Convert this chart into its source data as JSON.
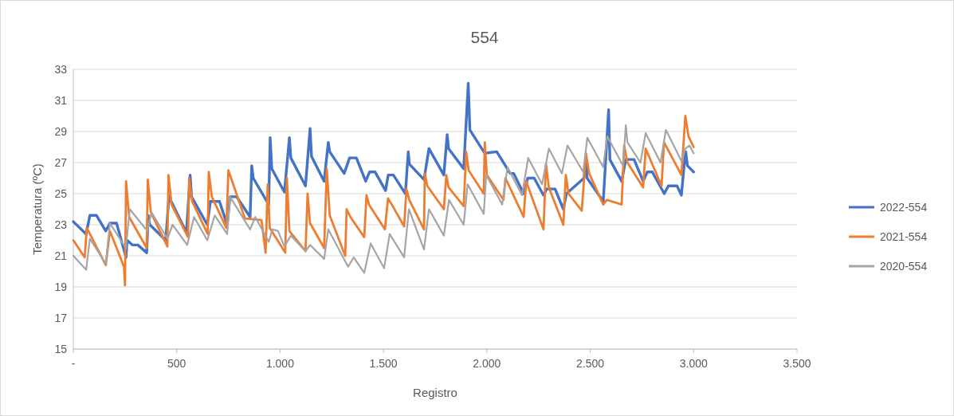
{
  "chart_data": {
    "type": "line",
    "title": "554",
    "xlabel": "Registro",
    "ylabel": "Temperatura (ºC)",
    "xlim": [
      0,
      3500
    ],
    "xticks": [
      {
        "value": 0,
        "label": "-"
      },
      500,
      {
        "value": 1000,
        "label": "1.000"
      },
      {
        "value": 1500,
        "label": "1.500"
      },
      {
        "value": 2000,
        "label": "2.000"
      },
      {
        "value": 2500,
        "label": "2.500"
      },
      {
        "value": 3000,
        "label": "3.000"
      },
      {
        "value": 3500,
        "label": "3.500"
      }
    ],
    "ylim": [
      15,
      33
    ],
    "yticks": [
      15,
      17,
      19,
      21,
      23,
      25,
      27,
      29,
      31,
      33
    ],
    "grid": "y",
    "legend": "right",
    "line_style": "solid",
    "marker": "none",
    "series": [
      {
        "name": "2022-554",
        "color": "#4472c4",
        "x": [
          0,
          62,
          80,
          112,
          157,
          177,
          209,
          255,
          260,
          285,
          312,
          355,
          362,
          370,
          447,
          465,
          470,
          547,
          565,
          572,
          648,
          663,
          707,
          744,
          758,
          790,
          855,
          863,
          870,
          945,
          952,
          960,
          1021,
          1045,
          1052,
          1123,
          1145,
          1152,
          1213,
          1233,
          1240,
          1310,
          1336,
          1369,
          1414,
          1433,
          1459,
          1510,
          1523,
          1548,
          1606,
          1620,
          1625,
          1696,
          1720,
          1792,
          1808,
          1815,
          1888,
          1910,
          1918,
          1990,
          2048,
          2113,
          2130,
          2178,
          2198,
          2229,
          2274,
          2290,
          2330,
          2370,
          2385,
          2470,
          2479,
          2485,
          2563,
          2589,
          2595,
          2652,
          2672,
          2712,
          2756,
          2776,
          2800,
          2858,
          2878,
          2920,
          2941,
          2954,
          2962,
          2970,
          3000
        ],
        "values": [
          23.2,
          22.4,
          23.6,
          23.6,
          22.6,
          23.1,
          23.1,
          20.9,
          22.0,
          21.7,
          21.7,
          21.2,
          23.6,
          23.0,
          22.0,
          25.3,
          24.6,
          22.5,
          26.2,
          24.8,
          23.0,
          24.5,
          24.5,
          23.0,
          24.8,
          24.8,
          23.5,
          26.8,
          26.0,
          24.3,
          28.6,
          26.6,
          25.1,
          28.6,
          27.3,
          25.5,
          29.2,
          27.4,
          25.8,
          28.3,
          27.7,
          26.3,
          27.3,
          27.3,
          25.8,
          26.4,
          26.4,
          25.2,
          26.2,
          26.2,
          25.0,
          27.7,
          26.9,
          25.9,
          27.9,
          26.2,
          28.8,
          27.9,
          26.6,
          32.1,
          29.1,
          27.6,
          27.7,
          26.3,
          26.3,
          25.0,
          26.0,
          26.0,
          24.9,
          25.3,
          25.3,
          24.0,
          25.0,
          26.0,
          27.3,
          26.0,
          24.5,
          30.4,
          27.2,
          25.8,
          27.2,
          27.2,
          25.8,
          26.4,
          26.4,
          25.0,
          25.5,
          25.5,
          24.9,
          26.8,
          27.7,
          26.8,
          26.4
        ]
      },
      {
        "name": "2021-554",
        "color": "#ed7d31",
        "x": [
          0,
          55,
          65,
          157,
          177,
          245,
          250,
          255,
          270,
          355,
          360,
          375,
          455,
          460,
          475,
          555,
          560,
          575,
          650,
          655,
          670,
          740,
          750,
          830,
          910,
          930,
          940,
          950,
          1025,
          1033,
          1045,
          1123,
          1133,
          1145,
          1213,
          1226,
          1240,
          1315,
          1322,
          1340,
          1407,
          1418,
          1430,
          1507,
          1522,
          1540,
          1600,
          1611,
          1625,
          1696,
          1700,
          1712,
          1792,
          1804,
          1815,
          1888,
          1900,
          1912,
          1985,
          1990,
          2000,
          2080,
          2090,
          2178,
          2190,
          2274,
          2286,
          2300,
          2370,
          2382,
          2395,
          2459,
          2479,
          2495,
          2563,
          2580,
          2652,
          2664,
          2680,
          2756,
          2768,
          2845,
          2857,
          2941,
          2960,
          2975,
          3000
        ],
        "values": [
          22.0,
          20.9,
          22.8,
          20.4,
          22.6,
          20.3,
          19.1,
          25.8,
          23.5,
          21.5,
          25.9,
          23.8,
          21.6,
          26.2,
          24.3,
          22.2,
          26.0,
          24.5,
          22.4,
          26.4,
          24.8,
          22.8,
          26.5,
          23.4,
          23.3,
          21.2,
          25.6,
          22.8,
          21.2,
          26.0,
          22.6,
          21.3,
          25.0,
          23.1,
          21.5,
          26.6,
          23.6,
          21.0,
          24.0,
          23.5,
          22.2,
          24.9,
          24.3,
          22.7,
          24.7,
          24.3,
          22.9,
          25.3,
          24.6,
          22.7,
          26.3,
          25.5,
          24.0,
          26.2,
          25.4,
          24.2,
          27.7,
          26.5,
          25.0,
          28.3,
          26.2,
          24.6,
          26.0,
          23.5,
          25.8,
          22.7,
          26.9,
          25.4,
          23.0,
          26.2,
          25.0,
          23.9,
          27.6,
          26.3,
          24.3,
          24.6,
          24.3,
          28.1,
          27.0,
          25.4,
          27.9,
          25.5,
          28.3,
          26.2,
          30.0,
          28.7,
          28.0
        ]
      },
      {
        "name": "2020-554",
        "color": "#a5a5a5",
        "x": [
          0,
          62,
          80,
          157,
          177,
          254,
          273,
          358,
          378,
          455,
          480,
          551,
          584,
          648,
          684,
          744,
          758,
          855,
          880,
          945,
          963,
          990,
          1021,
          1052,
          1123,
          1145,
          1213,
          1233,
          1329,
          1356,
          1407,
          1438,
          1503,
          1530,
          1600,
          1623,
          1696,
          1720,
          1792,
          1817,
          1888,
          1907,
          1985,
          1997,
          2074,
          2100,
          2170,
          2200,
          2267,
          2300,
          2363,
          2390,
          2466,
          2486,
          2563,
          2582,
          2659,
          2672,
          2680,
          2743,
          2768,
          2840,
          2866,
          2941,
          2960,
          2980,
          3000
        ],
        "values": [
          21.0,
          20.1,
          22.1,
          20.5,
          23.1,
          21.5,
          24.0,
          22.6,
          23.8,
          22.1,
          23.0,
          21.7,
          23.5,
          22.0,
          23.6,
          22.4,
          24.8,
          22.7,
          23.5,
          21.9,
          22.7,
          22.6,
          21.6,
          22.3,
          21.3,
          21.7,
          20.8,
          22.7,
          20.3,
          20.9,
          19.9,
          21.8,
          20.2,
          22.4,
          20.9,
          24.0,
          21.4,
          24.0,
          22.3,
          24.6,
          23.0,
          25.6,
          23.7,
          26.2,
          24.3,
          26.7,
          24.9,
          27.3,
          25.6,
          27.9,
          26.3,
          28.1,
          26.4,
          28.6,
          26.7,
          28.7,
          26.8,
          29.4,
          28.3,
          27.0,
          28.9,
          27.0,
          29.1,
          27.1,
          27.9,
          28.1,
          27.6
        ]
      }
    ]
  }
}
